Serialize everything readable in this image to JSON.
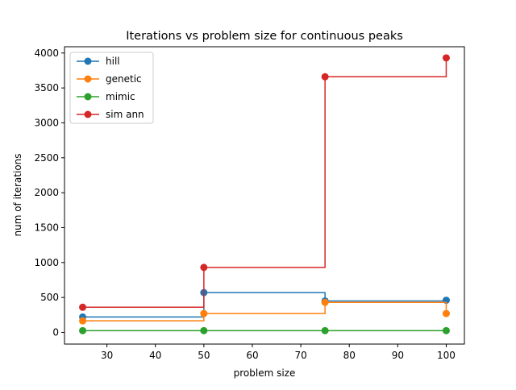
{
  "chart_data": {
    "type": "line",
    "drawstyle": "steps-post",
    "title": "Iterations vs problem size for continuous peaks",
    "xlabel": "problem size",
    "ylabel": "num of iterations",
    "xlim": [
      21.25,
      103.75
    ],
    "ylim": [
      -167.5,
      4090
    ],
    "xticks": [
      "30",
      "40",
      "50",
      "60",
      "70",
      "80",
      "90",
      "100"
    ],
    "yticks": [
      "0",
      "500",
      "1000",
      "1500",
      "2000",
      "2500",
      "3000",
      "3500",
      "4000"
    ],
    "legend_placement": "top-left",
    "grid": false,
    "x": [
      25,
      50,
      75,
      100
    ],
    "series": [
      {
        "name": "hill",
        "color": "#1f77b4",
        "values": [
          220,
          570,
          450,
          460
        ]
      },
      {
        "name": "genetic",
        "color": "#ff7f0e",
        "values": [
          165,
          270,
          430,
          270
        ]
      },
      {
        "name": "mimic",
        "color": "#2ca02c",
        "values": [
          25,
          25,
          25,
          25
        ]
      },
      {
        "name": "sim ann",
        "color": "#d62728",
        "values": [
          360,
          930,
          3660,
          3930
        ]
      }
    ]
  }
}
